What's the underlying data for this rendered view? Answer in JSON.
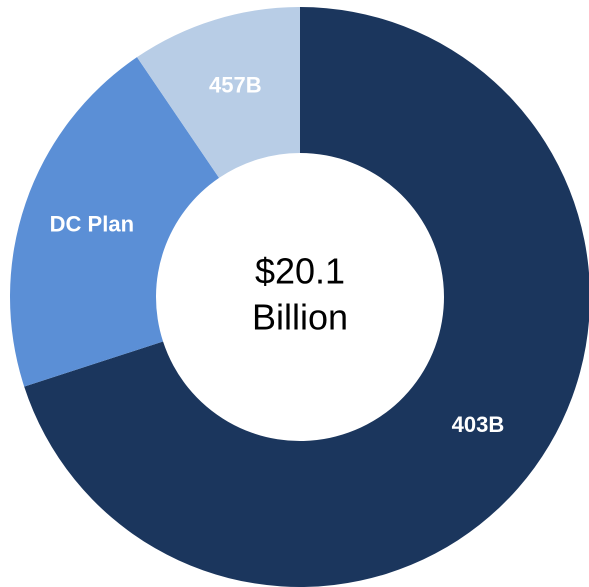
{
  "chart_data": {
    "type": "donut",
    "categories": [
      "403B",
      "DC Plan",
      "457B"
    ],
    "values": [
      70,
      20.5,
      9.5
    ],
    "colors": [
      "#1b365d",
      "#5b8fd6",
      "#b8cde6"
    ],
    "center_label": [
      "$20.1",
      "Billion"
    ]
  }
}
